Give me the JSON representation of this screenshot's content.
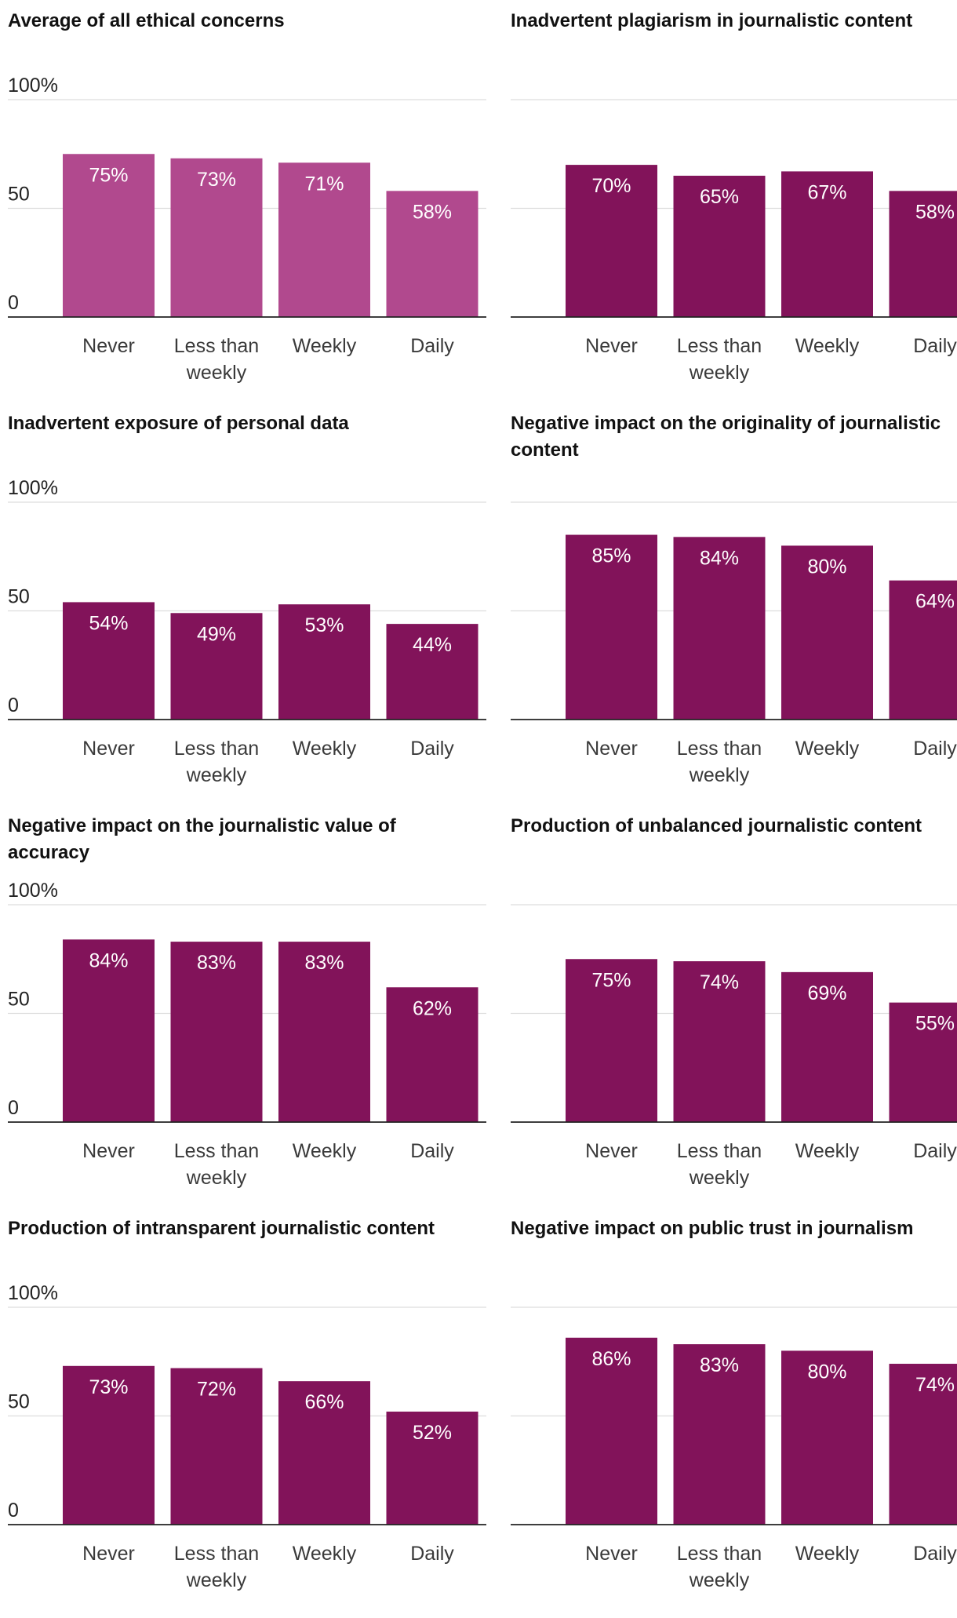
{
  "colors": {
    "first_bar": "#b1498e",
    "bar": "#82135a",
    "gridline": "#dddddd",
    "axis": "#222222",
    "value_text": "#ffffff"
  },
  "chart_data": [
    {
      "type": "bar",
      "title": "Average of all ethical concerns",
      "categories": [
        "Never",
        "Less than weekly",
        "Weekly",
        "Daily"
      ],
      "values": [
        75,
        73,
        71,
        58
      ],
      "value_labels": [
        "75%",
        "73%",
        "71%",
        "58%"
      ],
      "ylim": [
        0,
        100
      ],
      "yticks": [
        {
          "value": 0,
          "label": "0"
        },
        {
          "value": 50,
          "label": "50"
        },
        {
          "value": 100,
          "label": "100%"
        }
      ],
      "ytick_labels_shown": true,
      "xlabel": "",
      "ylabel": "",
      "grid": true
    },
    {
      "type": "bar",
      "title": "Inadvertent plagiarism in journalistic content",
      "categories": [
        "Never",
        "Less than weekly",
        "Weekly",
        "Daily"
      ],
      "values": [
        70,
        65,
        67,
        58
      ],
      "value_labels": [
        "70%",
        "65%",
        "67%",
        "58%"
      ],
      "ylim": [
        0,
        100
      ],
      "yticks": [
        {
          "value": 0,
          "label": "0"
        },
        {
          "value": 50,
          "label": "50"
        },
        {
          "value": 100,
          "label": "100%"
        }
      ],
      "ytick_labels_shown": false,
      "xlabel": "",
      "ylabel": "",
      "grid": true
    },
    {
      "type": "bar",
      "title": "Inadvertent exposure of personal data",
      "categories": [
        "Never",
        "Less than weekly",
        "Weekly",
        "Daily"
      ],
      "values": [
        54,
        49,
        53,
        44
      ],
      "value_labels": [
        "54%",
        "49%",
        "53%",
        "44%"
      ],
      "ylim": [
        0,
        100
      ],
      "yticks": [
        {
          "value": 0,
          "label": "0"
        },
        {
          "value": 50,
          "label": "50"
        },
        {
          "value": 100,
          "label": "100%"
        }
      ],
      "ytick_labels_shown": true,
      "xlabel": "",
      "ylabel": "",
      "grid": true
    },
    {
      "type": "bar",
      "title": "Negative impact on the originality of journalistic content",
      "categories": [
        "Never",
        "Less than weekly",
        "Weekly",
        "Daily"
      ],
      "values": [
        85,
        84,
        80,
        64
      ],
      "value_labels": [
        "85%",
        "84%",
        "80%",
        "64%"
      ],
      "ylim": [
        0,
        100
      ],
      "yticks": [
        {
          "value": 0,
          "label": "0"
        },
        {
          "value": 50,
          "label": "50"
        },
        {
          "value": 100,
          "label": "100%"
        }
      ],
      "ytick_labels_shown": false,
      "xlabel": "",
      "ylabel": "",
      "grid": true
    },
    {
      "type": "bar",
      "title": "Negative impact on the journalistic value of accuracy",
      "categories": [
        "Never",
        "Less than weekly",
        "Weekly",
        "Daily"
      ],
      "values": [
        84,
        83,
        83,
        62
      ],
      "value_labels": [
        "84%",
        "83%",
        "83%",
        "62%"
      ],
      "ylim": [
        0,
        100
      ],
      "yticks": [
        {
          "value": 0,
          "label": "0"
        },
        {
          "value": 50,
          "label": "50"
        },
        {
          "value": 100,
          "label": "100%"
        }
      ],
      "ytick_labels_shown": true,
      "xlabel": "",
      "ylabel": "",
      "grid": true
    },
    {
      "type": "bar",
      "title": "Production of unbalanced journalistic content",
      "categories": [
        "Never",
        "Less than weekly",
        "Weekly",
        "Daily"
      ],
      "values": [
        75,
        74,
        69,
        55
      ],
      "value_labels": [
        "75%",
        "74%",
        "69%",
        "55%"
      ],
      "ylim": [
        0,
        100
      ],
      "yticks": [
        {
          "value": 0,
          "label": "0"
        },
        {
          "value": 50,
          "label": "50"
        },
        {
          "value": 100,
          "label": "100%"
        }
      ],
      "ytick_labels_shown": false,
      "xlabel": "",
      "ylabel": "",
      "grid": true
    },
    {
      "type": "bar",
      "title": "Production of intransparent journalistic content",
      "categories": [
        "Never",
        "Less than weekly",
        "Weekly",
        "Daily"
      ],
      "values": [
        73,
        72,
        66,
        52
      ],
      "value_labels": [
        "73%",
        "72%",
        "66%",
        "52%"
      ],
      "ylim": [
        0,
        100
      ],
      "yticks": [
        {
          "value": 0,
          "label": "0"
        },
        {
          "value": 50,
          "label": "50"
        },
        {
          "value": 100,
          "label": "100%"
        }
      ],
      "ytick_labels_shown": true,
      "xlabel": "",
      "ylabel": "",
      "grid": true
    },
    {
      "type": "bar",
      "title": "Negative impact on public trust in journalism",
      "categories": [
        "Never",
        "Less than weekly",
        "Weekly",
        "Daily"
      ],
      "values": [
        86,
        83,
        80,
        74
      ],
      "value_labels": [
        "86%",
        "83%",
        "80%",
        "74%"
      ],
      "ylim": [
        0,
        100
      ],
      "yticks": [
        {
          "value": 0,
          "label": "0"
        },
        {
          "value": 50,
          "label": "50"
        },
        {
          "value": 100,
          "label": "100%"
        }
      ],
      "ytick_labels_shown": false,
      "xlabel": "",
      "ylabel": "",
      "grid": true
    }
  ]
}
